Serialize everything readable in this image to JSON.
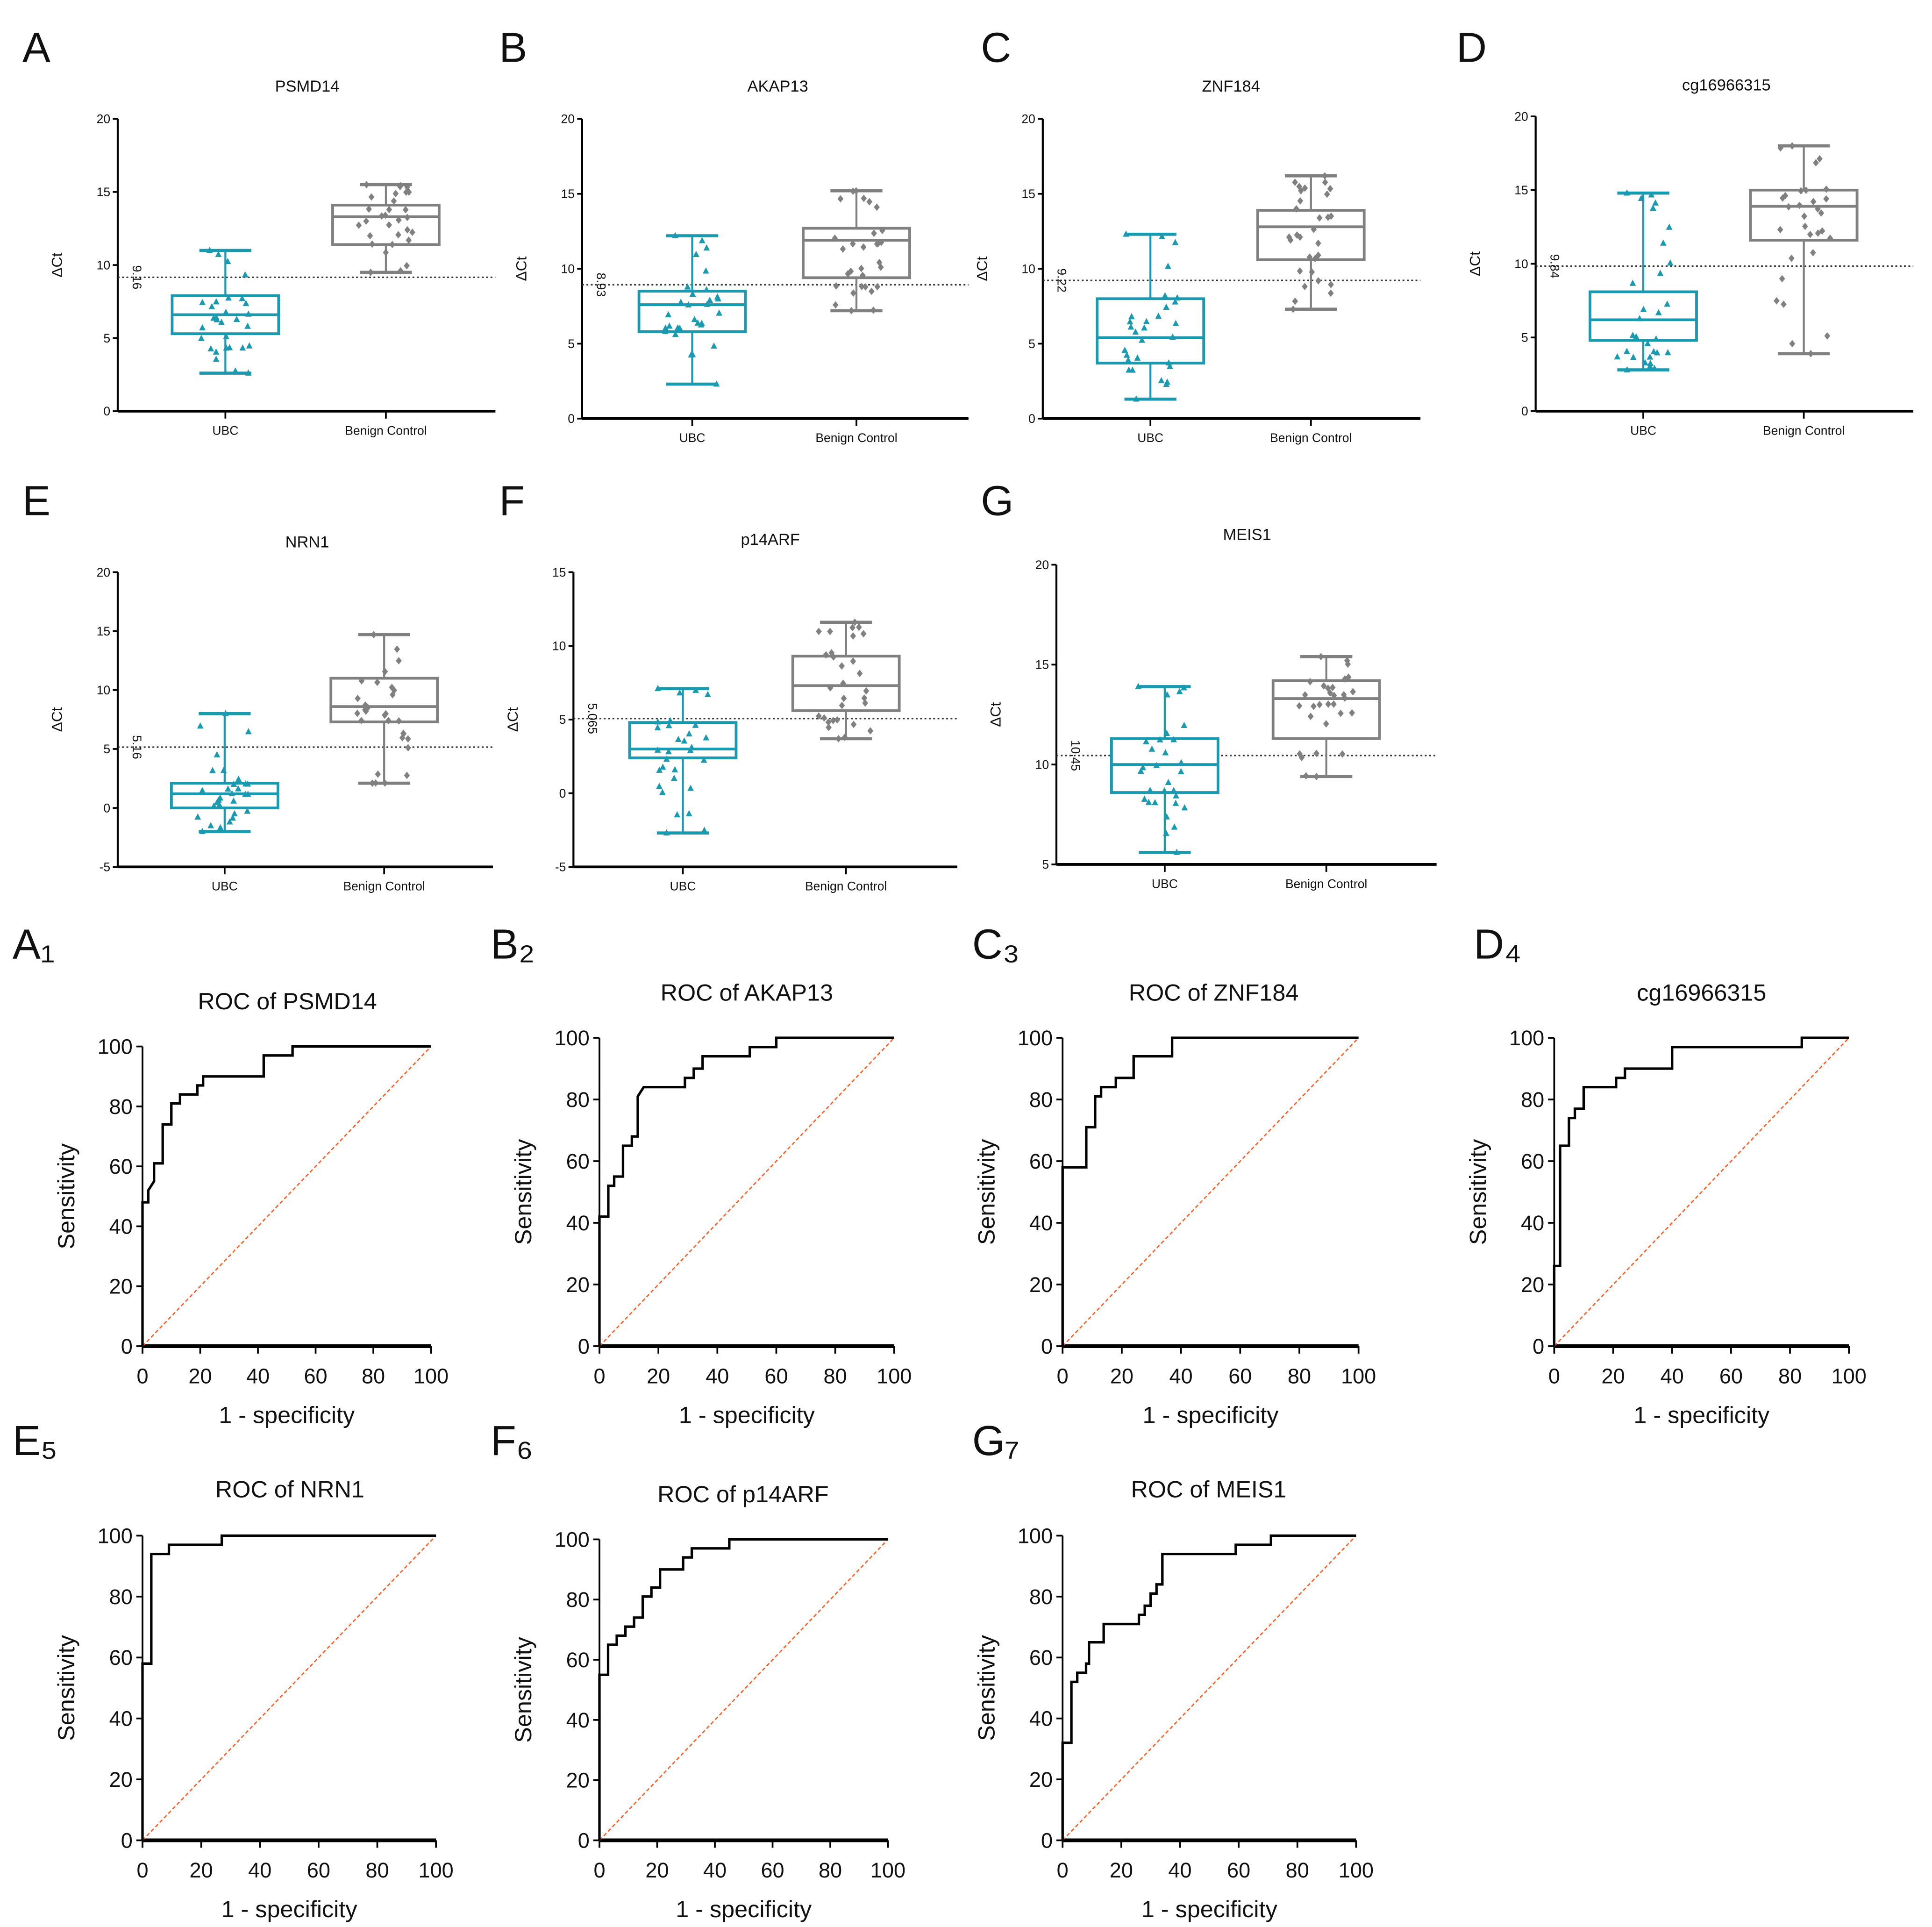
{
  "colors": {
    "ubc": "#1a9ab0",
    "benign": "#808080",
    "roc": "#000000",
    "reference": "#ff5a1f",
    "cutoff": "#333333"
  },
  "chart_data": [
    {
      "type": "box",
      "panel": "A",
      "title": "PSMD14",
      "ylabel": "ΔCt",
      "ylim": [
        0,
        20
      ],
      "yticks": [
        "0",
        "5",
        "10",
        "15",
        "20"
      ],
      "categories": [
        "UBC",
        "Benign Control"
      ],
      "series": [
        {
          "name": "UBC",
          "min": 2.6,
          "q1": 5.3,
          "median": 6.6,
          "q3": 7.9,
          "max": 11.0
        },
        {
          "name": "Benign Control",
          "min": 9.5,
          "q1": 11.4,
          "median": 13.3,
          "q3": 14.1,
          "max": 15.5
        }
      ],
      "cutoff": 9.16,
      "cutoff_label": "9.16"
    },
    {
      "type": "box",
      "panel": "B",
      "title": "AKAP13",
      "ylabel": "ΔCt",
      "ylim": [
        0,
        20
      ],
      "yticks": [
        "0",
        "5",
        "10",
        "15",
        "20"
      ],
      "categories": [
        "UBC",
        "Benign Control"
      ],
      "series": [
        {
          "name": "UBC",
          "min": 2.3,
          "q1": 5.8,
          "median": 7.6,
          "q3": 8.5,
          "max": 12.2
        },
        {
          "name": "Benign Control",
          "min": 7.2,
          "q1": 9.4,
          "median": 11.9,
          "q3": 12.7,
          "max": 15.2
        }
      ],
      "cutoff": 8.93,
      "cutoff_label": "8.93"
    },
    {
      "type": "box",
      "panel": "C",
      "title": "ZNF184",
      "ylabel": "ΔCt",
      "ylim": [
        0,
        20
      ],
      "yticks": [
        "0",
        "5",
        "10",
        "15",
        "20"
      ],
      "categories": [
        "UBC",
        "Benign Control"
      ],
      "series": [
        {
          "name": "UBC",
          "min": 1.3,
          "q1": 3.7,
          "median": 5.4,
          "q3": 8.0,
          "max": 12.3
        },
        {
          "name": "Benign Control",
          "min": 7.3,
          "q1": 10.6,
          "median": 12.8,
          "q3": 13.9,
          "max": 16.2
        }
      ],
      "cutoff": 9.22,
      "cutoff_label": "9.22"
    },
    {
      "type": "box",
      "panel": "D",
      "title": "cg16966315",
      "ylabel": "ΔCt",
      "ylim": [
        0,
        20
      ],
      "yticks": [
        "0",
        "5",
        "10",
        "15",
        "20"
      ],
      "categories": [
        "UBC",
        "Benign Control"
      ],
      "series": [
        {
          "name": "UBC",
          "min": 2.8,
          "q1": 4.8,
          "median": 6.2,
          "q3": 8.1,
          "max": 14.8
        },
        {
          "name": "Benign Control",
          "min": 3.9,
          "q1": 11.6,
          "median": 13.9,
          "q3": 15.0,
          "max": 18.0
        }
      ],
      "cutoff": 9.84,
      "cutoff_label": "9.84"
    },
    {
      "type": "box",
      "panel": "E",
      "title": "NRN1",
      "ylabel": "ΔCt",
      "ylim": [
        -5,
        20
      ],
      "yticks": [
        "-5",
        "0",
        "5",
        "10",
        "15",
        "20"
      ],
      "categories": [
        "UBC",
        "Benign Control"
      ],
      "series": [
        {
          "name": "UBC",
          "min": -2.0,
          "q1": 0.0,
          "median": 1.2,
          "q3": 2.1,
          "max": 8.0
        },
        {
          "name": "Benign Control",
          "min": 2.1,
          "q1": 7.3,
          "median": 8.6,
          "q3": 11.0,
          "max": 14.7
        }
      ],
      "cutoff": 5.16,
      "cutoff_label": "5.16"
    },
    {
      "type": "box",
      "panel": "F",
      "title": "p14ARF",
      "ylabel": "ΔCt",
      "ylim": [
        -5,
        15
      ],
      "yticks": [
        "-5",
        "0",
        "5",
        "10",
        "15"
      ],
      "categories": [
        "UBC",
        "Benign Control"
      ],
      "series": [
        {
          "name": "UBC",
          "min": -2.7,
          "q1": 2.4,
          "median": 3.0,
          "q3": 4.8,
          "max": 7.1
        },
        {
          "name": "Benign Control",
          "min": 3.7,
          "q1": 5.6,
          "median": 7.3,
          "q3": 9.3,
          "max": 11.6
        }
      ],
      "cutoff": 5.065,
      "cutoff_label": "5.065"
    },
    {
      "type": "box",
      "panel": "G",
      "title": "MEIS1",
      "ylabel": "ΔCt",
      "ylim": [
        5,
        20
      ],
      "yticks": [
        "5",
        "10",
        "15",
        "20"
      ],
      "categories": [
        "UBC",
        "Benign Control"
      ],
      "series": [
        {
          "name": "UBC",
          "min": 5.6,
          "q1": 8.6,
          "median": 10.0,
          "q3": 11.3,
          "max": 13.9
        },
        {
          "name": "Benign Control",
          "min": 9.4,
          "q1": 11.3,
          "median": 13.3,
          "q3": 14.2,
          "max": 15.4
        }
      ],
      "cutoff": 10.45,
      "cutoff_label": "10.45"
    },
    {
      "type": "line",
      "panel": "A1",
      "title": "ROC of PSMD14",
      "xlabel": "1 - specificity",
      "ylabel": "Sensitivity",
      "xlim": [
        0,
        100
      ],
      "ylim": [
        0,
        100
      ],
      "ticks": [
        "0",
        "20",
        "40",
        "60",
        "80",
        "100"
      ],
      "points": [
        [
          0,
          0
        ],
        [
          0,
          48
        ],
        [
          2,
          48
        ],
        [
          2,
          52
        ],
        [
          4,
          55
        ],
        [
          4,
          61
        ],
        [
          7,
          61
        ],
        [
          7,
          74
        ],
        [
          10,
          74
        ],
        [
          10,
          81
        ],
        [
          13,
          81
        ],
        [
          13,
          84
        ],
        [
          19,
          84
        ],
        [
          19,
          87
        ],
        [
          21,
          87
        ],
        [
          21,
          90
        ],
        [
          42,
          90
        ],
        [
          42,
          97
        ],
        [
          52,
          97
        ],
        [
          52,
          100
        ],
        [
          100,
          100
        ]
      ]
    },
    {
      "type": "line",
      "panel": "B2",
      "title": "ROC of AKAP13",
      "xlabel": "1 - specificity",
      "ylabel": "Sensitivity",
      "xlim": [
        0,
        100
      ],
      "ylim": [
        0,
        100
      ],
      "ticks": [
        "0",
        "20",
        "40",
        "60",
        "80",
        "100"
      ],
      "points": [
        [
          0,
          0
        ],
        [
          0,
          42
        ],
        [
          3,
          42
        ],
        [
          3,
          52
        ],
        [
          5,
          52
        ],
        [
          5,
          55
        ],
        [
          8,
          55
        ],
        [
          8,
          65
        ],
        [
          11,
          65
        ],
        [
          11,
          68
        ],
        [
          13,
          68
        ],
        [
          13,
          81
        ],
        [
          15,
          84
        ],
        [
          29,
          84
        ],
        [
          29,
          87
        ],
        [
          32,
          87
        ],
        [
          32,
          90
        ],
        [
          35,
          90
        ],
        [
          35,
          94
        ],
        [
          51,
          94
        ],
        [
          51,
          97
        ],
        [
          60,
          97
        ],
        [
          60,
          100
        ],
        [
          100,
          100
        ]
      ]
    },
    {
      "type": "line",
      "panel": "C3",
      "title": "ROC of ZNF184",
      "xlabel": "1 - specificity",
      "ylabel": "Sensitivity",
      "xlim": [
        0,
        100
      ],
      "ylim": [
        0,
        100
      ],
      "ticks": [
        "0",
        "20",
        "40",
        "60",
        "80",
        "100"
      ],
      "points": [
        [
          0,
          0
        ],
        [
          0,
          58
        ],
        [
          8,
          58
        ],
        [
          8,
          71
        ],
        [
          11,
          71
        ],
        [
          11,
          81
        ],
        [
          13,
          81
        ],
        [
          13,
          84
        ],
        [
          18,
          84
        ],
        [
          18,
          87
        ],
        [
          24,
          87
        ],
        [
          24,
          94
        ],
        [
          37,
          94
        ],
        [
          37,
          100
        ],
        [
          100,
          100
        ]
      ]
    },
    {
      "type": "line",
      "panel": "D4",
      "title": "cg16966315",
      "xlabel": "1 - specificity",
      "ylabel": "Sensitivity",
      "xlim": [
        0,
        100
      ],
      "ylim": [
        0,
        100
      ],
      "ticks": [
        "0",
        "20",
        "40",
        "60",
        "80",
        "100"
      ],
      "points": [
        [
          0,
          0
        ],
        [
          0,
          26
        ],
        [
          2,
          26
        ],
        [
          2,
          65
        ],
        [
          5,
          65
        ],
        [
          5,
          74
        ],
        [
          7,
          74
        ],
        [
          7,
          77
        ],
        [
          10,
          77
        ],
        [
          10,
          84
        ],
        [
          21,
          84
        ],
        [
          21,
          87
        ],
        [
          24,
          87
        ],
        [
          24,
          90
        ],
        [
          40,
          90
        ],
        [
          40,
          97
        ],
        [
          84,
          97
        ],
        [
          84,
          100
        ],
        [
          100,
          100
        ]
      ]
    },
    {
      "type": "line",
      "panel": "E5",
      "title": "ROC of NRN1",
      "xlabel": "1 - specificity",
      "ylabel": "Sensitivity",
      "xlim": [
        0,
        100
      ],
      "ylim": [
        0,
        100
      ],
      "ticks": [
        "0",
        "20",
        "40",
        "60",
        "80",
        "100"
      ],
      "points": [
        [
          0,
          0
        ],
        [
          0,
          58
        ],
        [
          3,
          58
        ],
        [
          3,
          94
        ],
        [
          9,
          94
        ],
        [
          9,
          97
        ],
        [
          27,
          97
        ],
        [
          27,
          100
        ],
        [
          100,
          100
        ]
      ]
    },
    {
      "type": "line",
      "panel": "F6",
      "title": "ROC of p14ARF",
      "xlabel": "1 - specificity",
      "ylabel": "Sensitivity",
      "xlim": [
        0,
        100
      ],
      "ylim": [
        0,
        100
      ],
      "ticks": [
        "0",
        "20",
        "40",
        "60",
        "80",
        "100"
      ],
      "points": [
        [
          0,
          0
        ],
        [
          0,
          55
        ],
        [
          3,
          55
        ],
        [
          3,
          65
        ],
        [
          6,
          65
        ],
        [
          6,
          68
        ],
        [
          9,
          68
        ],
        [
          9,
          71
        ],
        [
          12,
          71
        ],
        [
          12,
          74
        ],
        [
          15,
          74
        ],
        [
          15,
          81
        ],
        [
          18,
          81
        ],
        [
          18,
          84
        ],
        [
          21,
          84
        ],
        [
          21,
          90
        ],
        [
          29,
          90
        ],
        [
          29,
          94
        ],
        [
          32,
          94
        ],
        [
          32,
          97
        ],
        [
          45,
          97
        ],
        [
          45,
          100
        ],
        [
          100,
          100
        ]
      ]
    },
    {
      "type": "line",
      "panel": "G7",
      "title": "ROC of MEIS1",
      "xlabel": "1 - specificity",
      "ylabel": "Sensitivity",
      "xlim": [
        0,
        100
      ],
      "ylim": [
        0,
        100
      ],
      "ticks": [
        "0",
        "20",
        "40",
        "60",
        "80",
        "100"
      ],
      "points": [
        [
          0,
          0
        ],
        [
          0,
          32
        ],
        [
          3,
          32
        ],
        [
          3,
          52
        ],
        [
          5,
          52
        ],
        [
          5,
          55
        ],
        [
          8,
          55
        ],
        [
          8,
          58
        ],
        [
          9,
          58
        ],
        [
          9,
          65
        ],
        [
          14,
          65
        ],
        [
          14,
          71
        ],
        [
          26,
          71
        ],
        [
          26,
          74
        ],
        [
          28,
          74
        ],
        [
          28,
          77
        ],
        [
          30,
          77
        ],
        [
          30,
          81
        ],
        [
          32,
          81
        ],
        [
          32,
          84
        ],
        [
          34,
          84
        ],
        [
          34,
          94
        ],
        [
          59,
          94
        ],
        [
          59,
          97
        ],
        [
          71,
          97
        ],
        [
          71,
          100
        ],
        [
          100,
          100
        ]
      ]
    }
  ],
  "panel_letters": {
    "A": "A",
    "B": "B",
    "C": "C",
    "D": "D",
    "E": "E",
    "F": "F",
    "G": "G",
    "A1": "A₁",
    "B2": "B₂",
    "C3": "C₃",
    "D4": "D₄",
    "E5": "E₅",
    "F6": "F₆",
    "G7": "G₇"
  }
}
